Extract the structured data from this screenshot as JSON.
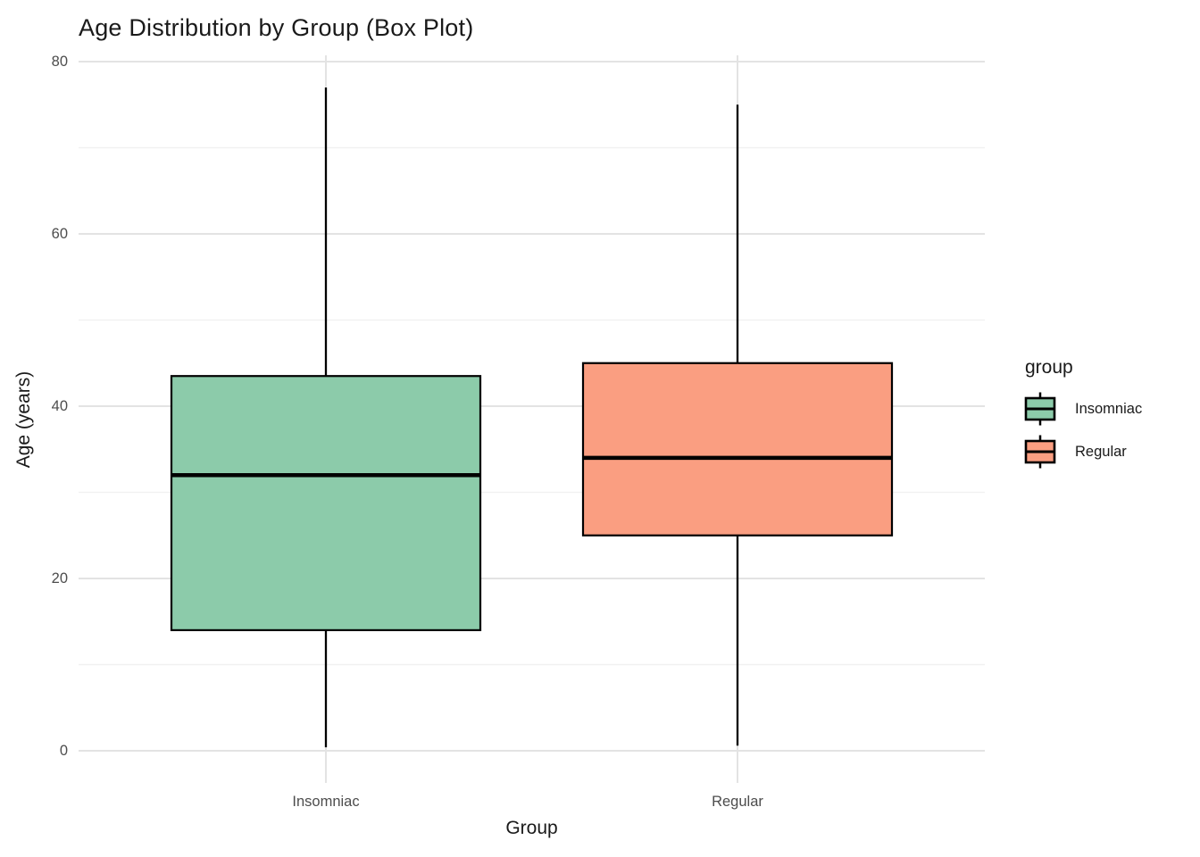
{
  "title": "Age Distribution by Group (Box Plot)",
  "axes": {
    "x": {
      "title": "Group",
      "categories": [
        "Insomniac",
        "Regular"
      ]
    },
    "y": {
      "title": "Age (years)",
      "tick_labels": [
        "0",
        "20",
        "40",
        "60",
        "80"
      ]
    }
  },
  "legend": {
    "title": "group",
    "items": [
      {
        "label": "Insomniac",
        "color": "#8CCBAA"
      },
      {
        "label": "Regular",
        "color": "#FA9E81"
      }
    ]
  },
  "colors": {
    "background": "#FFFFFF",
    "grid_major": "#E3E3E3",
    "grid_minor": "#F1F1F1",
    "box_stroke": "#000000",
    "tick_label": "#4D4D4D",
    "text": "#1A1A1A"
  },
  "chart_data": {
    "type": "boxplot",
    "title": "Age Distribution by Group (Box Plot)",
    "xlabel": "Group",
    "ylabel": "Age (years)",
    "ylim": [
      0,
      80
    ],
    "yticks": [
      0,
      20,
      40,
      60,
      80
    ],
    "yticks_minor": [
      10,
      30,
      50,
      70
    ],
    "grid": "major+minor",
    "legend_position": "right",
    "legend_title": "group",
    "categories": [
      "Insomniac",
      "Regular"
    ],
    "series": [
      {
        "name": "Insomniac",
        "whisker_min": 0.4,
        "q1": 14,
        "median": 32,
        "q3": 43.5,
        "whisker_max": 77,
        "fill": "#8CCBAA"
      },
      {
        "name": "Regular",
        "whisker_min": 0.6,
        "q1": 25,
        "median": 34,
        "q3": 45,
        "whisker_max": 75,
        "fill": "#FA9E81"
      }
    ]
  }
}
